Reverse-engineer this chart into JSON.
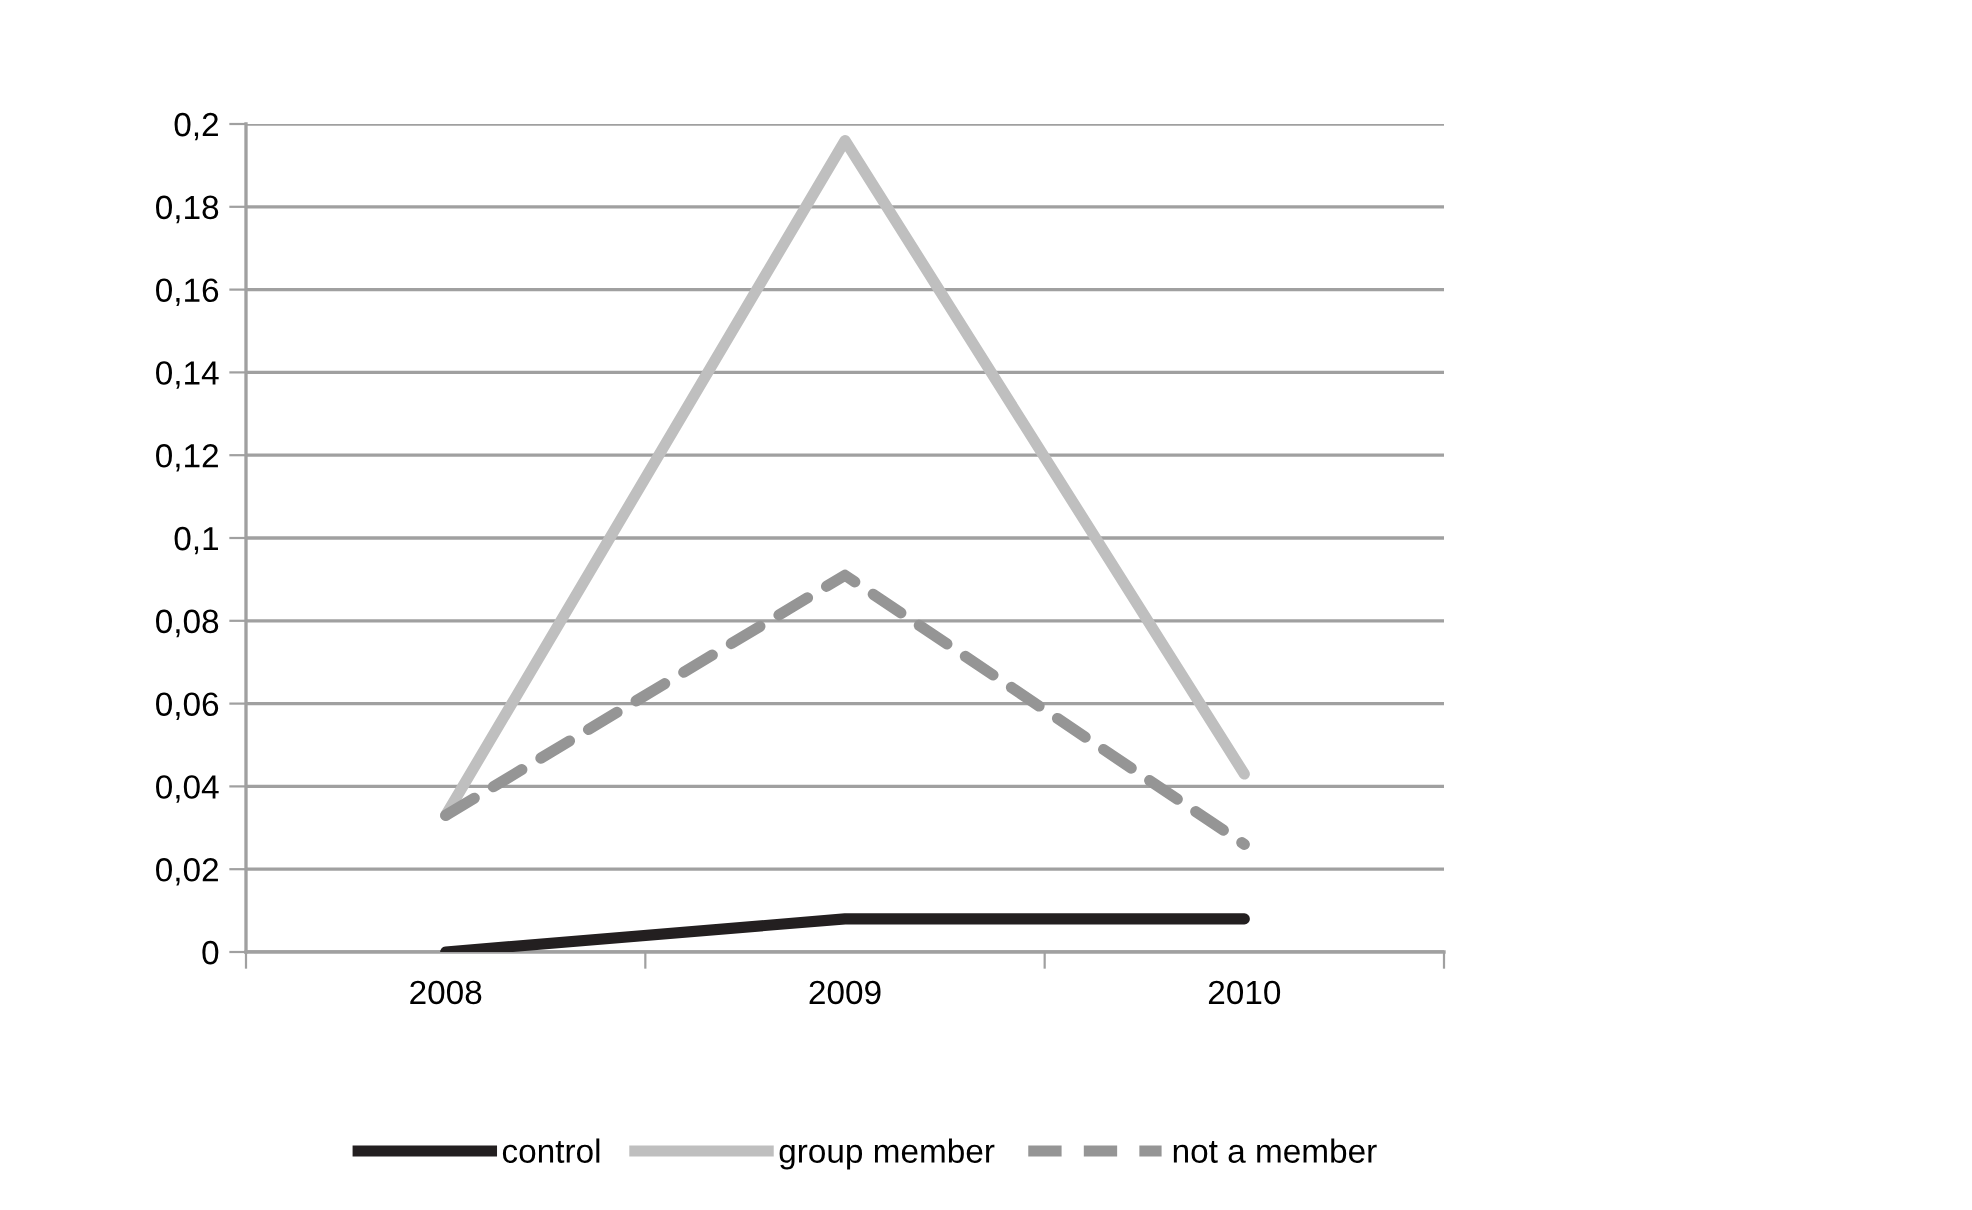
{
  "chart_data": {
    "type": "line",
    "categories": [
      "2008",
      "2009",
      "2010"
    ],
    "series": [
      {
        "name": "control",
        "color": "#231f20",
        "values": [
          0,
          0.008,
          0.008
        ],
        "line_style": "solid"
      },
      {
        "name": "group member",
        "color": "#bfbfbf",
        "values": [
          0.033,
          0.196,
          0.043
        ],
        "line_style": "solid"
      },
      {
        "name": "not a member",
        "color": "#959595",
        "values": [
          0.033,
          0.091,
          0.026
        ],
        "line_style": "dashed"
      }
    ],
    "ylim": [
      0,
      0.2
    ],
    "yticks": [
      0,
      {
        "value": 0.02,
        "label": "0,02"
      },
      {
        "value": 0.04,
        "label": "0,04"
      },
      {
        "value": 0.06,
        "label": "0,06"
      },
      {
        "value": 0.08,
        "label": "0,08"
      },
      {
        "value": 0.1,
        "label": "0,1"
      },
      {
        "value": 0.12,
        "label": "0,12"
      },
      {
        "value": 0.14,
        "label": "0,14"
      },
      {
        "value": 0.16,
        "label": "0,16"
      },
      {
        "value": 0.18,
        "label": "0,18"
      },
      {
        "value": 0.2,
        "label": "0,2"
      }
    ],
    "grid": "y",
    "legend": "bottom",
    "marker": "none"
  }
}
